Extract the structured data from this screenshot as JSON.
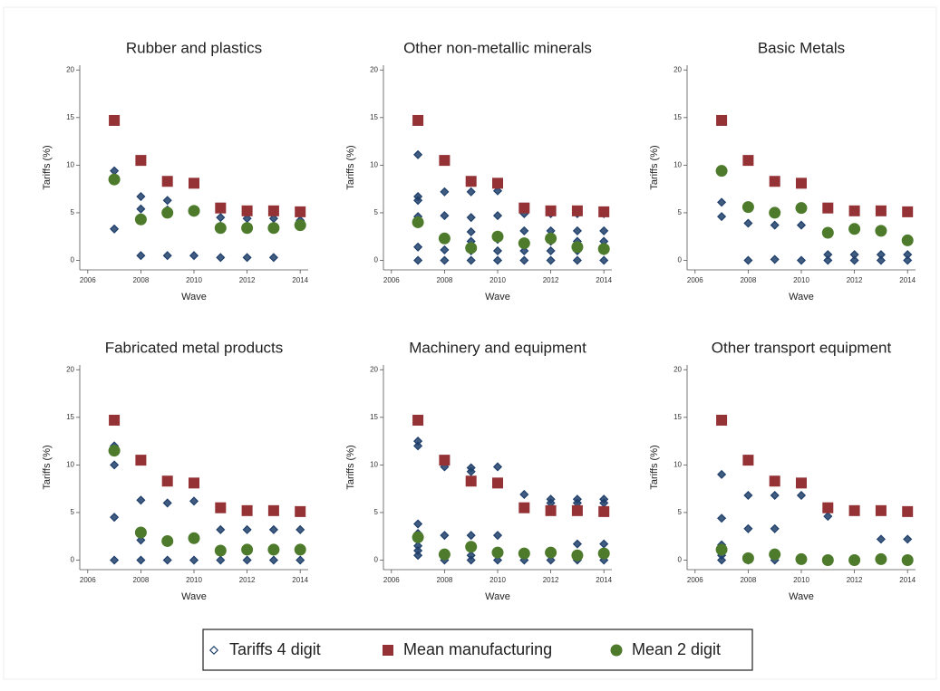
{
  "series_styles": [
    {
      "name": "Tariffs 4 digit",
      "color": "#1f3f6b",
      "marker": "diamond"
    },
    {
      "name": "Mean manufacturing",
      "color": "#943236",
      "marker": "square"
    },
    {
      "name": "Mean 2 digit",
      "color": "#4d7a2b",
      "marker": "circle"
    }
  ],
  "chart_data": [
    {
      "type": "scatter",
      "title": "Rubber and plastics",
      "xlabel": "Wave",
      "ylabel": "Tariffs (%)",
      "xlim": [
        2005.7,
        2014.3
      ],
      "ylim": [
        -1,
        20.5
      ],
      "xticks": [
        2006,
        2008,
        2010,
        2012,
        2014
      ],
      "yticks": [
        0,
        5,
        10,
        15,
        20
      ],
      "series": [
        {
          "x": [
            2007,
            2007,
            2008,
            2008,
            2008,
            2009,
            2009,
            2009,
            2010,
            2010,
            2011,
            2011,
            2011,
            2012,
            2012,
            2012,
            2013,
            2013,
            2013,
            2014,
            2014
          ],
          "values": [
            9.4,
            3.3,
            6.7,
            5.4,
            0.5,
            6.3,
            5.3,
            0.5,
            5.3,
            0.5,
            4.5,
            3.6,
            0.3,
            4.4,
            3.5,
            0.3,
            4.4,
            3.5,
            0.3,
            4.2,
            3.6
          ]
        },
        {
          "x": [
            2007,
            2008,
            2009,
            2010,
            2011,
            2012,
            2013,
            2014
          ],
          "values": [
            14.7,
            10.5,
            8.3,
            8.1,
            5.5,
            5.2,
            5.2,
            5.1
          ]
        },
        {
          "x": [
            2007,
            2008,
            2009,
            2010,
            2011,
            2012,
            2013,
            2014
          ],
          "values": [
            8.5,
            4.3,
            5.0,
            5.2,
            3.4,
            3.4,
            3.4,
            3.7
          ]
        }
      ]
    },
    {
      "type": "scatter",
      "title": "Other non-metallic minerals",
      "xlabel": "Wave",
      "ylabel": "Tariffs (%)",
      "xlim": [
        2005.7,
        2014.3
      ],
      "ylim": [
        -1,
        20.5
      ],
      "xticks": [
        2006,
        2008,
        2010,
        2012,
        2014
      ],
      "yticks": [
        0,
        5,
        10,
        15,
        20
      ],
      "series": [
        {
          "x": [
            2007,
            2007,
            2007,
            2007,
            2007,
            2007,
            2008,
            2008,
            2008,
            2008,
            2008,
            2009,
            2009,
            2009,
            2009,
            2009,
            2009,
            2010,
            2010,
            2010,
            2010,
            2010,
            2011,
            2011,
            2011,
            2011,
            2011,
            2012,
            2012,
            2012,
            2012,
            2012,
            2013,
            2013,
            2013,
            2013,
            2013,
            2014,
            2014,
            2014,
            2014,
            2014
          ],
          "values": [
            11.1,
            6.7,
            6.3,
            4.6,
            1.4,
            0,
            7.2,
            4.7,
            2.3,
            1.1,
            0,
            7.2,
            4.5,
            3.0,
            2.0,
            1.0,
            0,
            7.3,
            4.7,
            2.2,
            1.0,
            0,
            4.9,
            3.1,
            1.8,
            1.0,
            0,
            4.9,
            3.1,
            2.0,
            1.0,
            0,
            4.9,
            3.1,
            2.0,
            1.0,
            0,
            4.9,
            3.1,
            2.0,
            1.0,
            0
          ]
        },
        {
          "x": [
            2007,
            2008,
            2009,
            2010,
            2011,
            2012,
            2013,
            2014
          ],
          "values": [
            14.7,
            10.5,
            8.3,
            8.1,
            5.5,
            5.2,
            5.2,
            5.1
          ]
        },
        {
          "x": [
            2007,
            2008,
            2009,
            2010,
            2011,
            2012,
            2013,
            2014
          ],
          "values": [
            4.0,
            2.3,
            1.3,
            2.5,
            1.8,
            2.3,
            1.4,
            1.2
          ]
        }
      ]
    },
    {
      "type": "scatter",
      "title": "Basic Metals",
      "xlabel": "Wave",
      "ylabel": "Tariffs (%)",
      "xlim": [
        2005.7,
        2014.3
      ],
      "ylim": [
        -1,
        20.5
      ],
      "xticks": [
        2006,
        2008,
        2010,
        2012,
        2014
      ],
      "yticks": [
        0,
        5,
        10,
        15,
        20
      ],
      "series": [
        {
          "x": [
            2007,
            2007,
            2008,
            2008,
            2009,
            2009,
            2010,
            2010,
            2011,
            2011,
            2012,
            2012,
            2013,
            2013,
            2014,
            2014
          ],
          "values": [
            6.1,
            4.6,
            3.9,
            0,
            3.7,
            0.1,
            3.7,
            0,
            0.6,
            0,
            0.6,
            0,
            0.6,
            0,
            0.6,
            0
          ]
        },
        {
          "x": [
            2007,
            2008,
            2009,
            2010,
            2011,
            2012,
            2013,
            2014
          ],
          "values": [
            14.7,
            10.5,
            8.3,
            8.1,
            5.5,
            5.2,
            5.2,
            5.1
          ]
        },
        {
          "x": [
            2007,
            2008,
            2009,
            2010,
            2011,
            2012,
            2013,
            2014
          ],
          "values": [
            9.4,
            5.6,
            5.0,
            5.5,
            2.9,
            3.3,
            3.1,
            2.1
          ]
        }
      ]
    },
    {
      "type": "scatter",
      "title": "Fabricated metal products",
      "xlabel": "Wave",
      "ylabel": "Tariffs (%)",
      "xlim": [
        2005.7,
        2014.3
      ],
      "ylim": [
        -1,
        20.5
      ],
      "xticks": [
        2006,
        2008,
        2010,
        2012,
        2014
      ],
      "yticks": [
        0,
        5,
        10,
        15,
        20
      ],
      "series": [
        {
          "x": [
            2007,
            2007,
            2007,
            2007,
            2008,
            2008,
            2008,
            2009,
            2009,
            2010,
            2010,
            2011,
            2011,
            2012,
            2012,
            2013,
            2013,
            2014,
            2014
          ],
          "values": [
            12.0,
            10.0,
            4.5,
            0,
            6.3,
            2.1,
            0,
            6.0,
            0,
            6.2,
            0,
            3.2,
            0,
            3.2,
            0,
            3.2,
            0,
            3.2,
            0
          ]
        },
        {
          "x": [
            2007,
            2008,
            2009,
            2010,
            2011,
            2012,
            2013,
            2014
          ],
          "values": [
            14.7,
            10.5,
            8.3,
            8.1,
            5.5,
            5.2,
            5.2,
            5.1
          ]
        },
        {
          "x": [
            2007,
            2008,
            2009,
            2010,
            2011,
            2012,
            2013,
            2014
          ],
          "values": [
            11.5,
            2.9,
            2.0,
            2.3,
            1.0,
            1.1,
            1.1,
            1.1
          ]
        }
      ]
    },
    {
      "type": "scatter",
      "title": "Machinery and equipment",
      "xlabel": "Wave",
      "ylabel": "Tariffs (%)",
      "xlim": [
        2005.7,
        2014.3
      ],
      "ylim": [
        -1,
        20.5
      ],
      "xticks": [
        2006,
        2008,
        2010,
        2012,
        2014
      ],
      "yticks": [
        0,
        5,
        10,
        15,
        20
      ],
      "series": [
        {
          "x": [
            2007,
            2007,
            2007,
            2007,
            2007,
            2007,
            2007,
            2008,
            2008,
            2008,
            2008,
            2009,
            2009,
            2009,
            2009,
            2009,
            2010,
            2010,
            2010,
            2011,
            2011,
            2011,
            2012,
            2012,
            2012,
            2012,
            2013,
            2013,
            2013,
            2013,
            2014,
            2014,
            2014,
            2014
          ],
          "values": [
            12.5,
            12.0,
            3.8,
            2.8,
            1.5,
            1.0,
            0.5,
            9.8,
            2.6,
            0.5,
            0,
            9.7,
            9.3,
            2.6,
            0.5,
            0,
            9.8,
            2.6,
            0,
            6.9,
            0.8,
            0,
            6.4,
            6.0,
            0.8,
            0,
            6.4,
            6.0,
            1.7,
            0,
            6.4,
            6.0,
            1.7,
            0
          ]
        },
        {
          "x": [
            2007,
            2008,
            2009,
            2010,
            2011,
            2012,
            2013,
            2014
          ],
          "values": [
            14.7,
            10.5,
            8.3,
            8.1,
            5.5,
            5.2,
            5.2,
            5.1
          ]
        },
        {
          "x": [
            2007,
            2008,
            2009,
            2010,
            2011,
            2012,
            2013,
            2014
          ],
          "values": [
            2.4,
            0.6,
            1.4,
            0.8,
            0.7,
            0.8,
            0.5,
            0.7
          ]
        }
      ]
    },
    {
      "type": "scatter",
      "title": "Other transport equipment",
      "xlabel": "Wave",
      "ylabel": "Tariffs (%)",
      "xlim": [
        2005.7,
        2014.3
      ],
      "ylim": [
        -1,
        20.5
      ],
      "xticks": [
        2006,
        2008,
        2010,
        2012,
        2014
      ],
      "yticks": [
        0,
        5,
        10,
        15,
        20
      ],
      "series": [
        {
          "x": [
            2007,
            2007,
            2007,
            2007,
            2007,
            2008,
            2008,
            2008,
            2009,
            2009,
            2009,
            2010,
            2010,
            2011,
            2011,
            2012,
            2013,
            2013,
            2014,
            2014
          ],
          "values": [
            9.0,
            4.4,
            1.6,
            0.5,
            0,
            6.8,
            3.3,
            0,
            6.8,
            3.3,
            0,
            6.8,
            0,
            4.6,
            0,
            0,
            2.2,
            0,
            2.2,
            0
          ]
        },
        {
          "x": [
            2007,
            2008,
            2009,
            2010,
            2011,
            2012,
            2013,
            2014
          ],
          "values": [
            14.7,
            10.5,
            8.3,
            8.1,
            5.5,
            5.2,
            5.2,
            5.1
          ]
        },
        {
          "x": [
            2007,
            2008,
            2009,
            2010,
            2011,
            2012,
            2013,
            2014
          ],
          "values": [
            1.1,
            0.2,
            0.6,
            0.1,
            0.0,
            0.0,
            0.1,
            0.0
          ]
        }
      ]
    }
  ]
}
